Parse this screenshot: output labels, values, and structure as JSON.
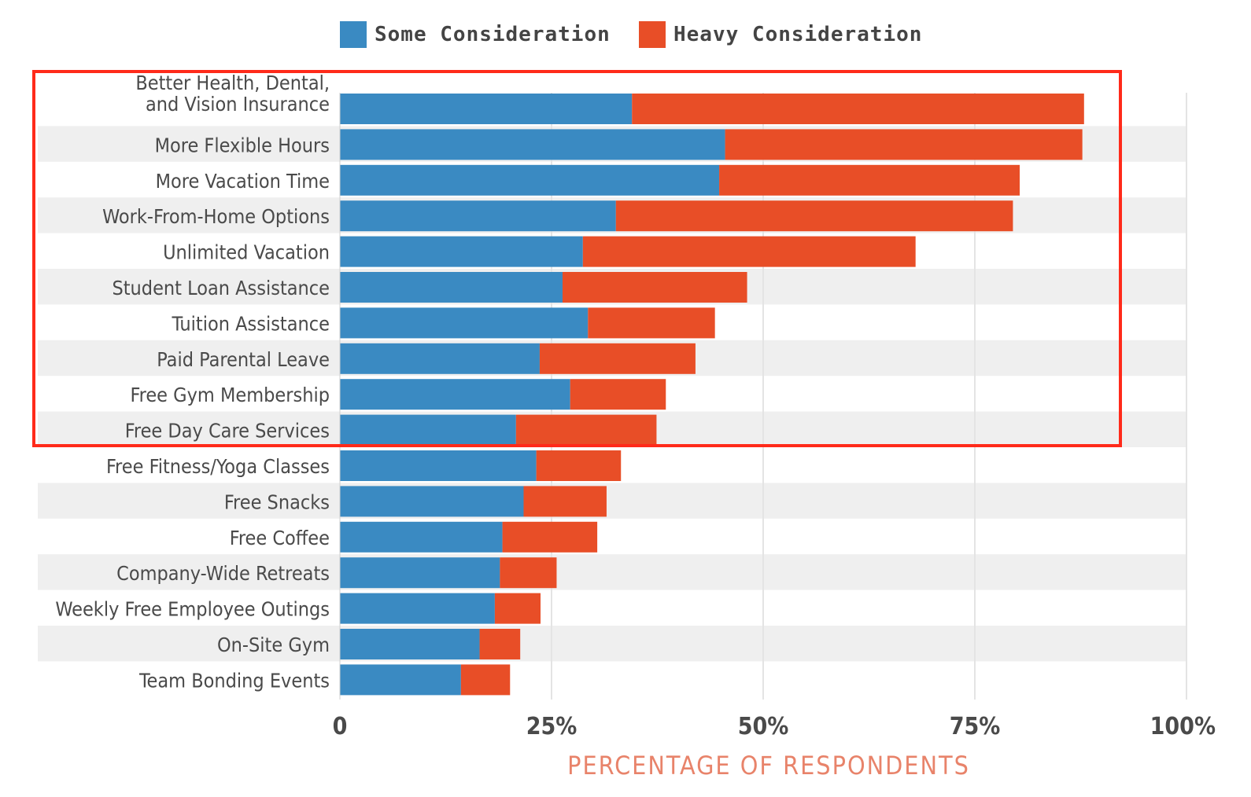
{
  "chart_data": {
    "type": "bar",
    "orientation": "horizontal",
    "stacked": true,
    "categories": [
      "Better Health, Dental,\nand Vision Insurance",
      "More Flexible Hours",
      "More Vacation Time",
      "Work-From-Home Options",
      "Unlimited Vacation",
      "Student Loan Assistance",
      "Tuition Assistance",
      "Paid Parental Leave",
      "Free Gym Membership",
      "Free Day Care Services",
      "Free Fitness/Yoga Classes",
      "Free Snacks",
      "Free Coffee",
      "Company-Wide Retreats",
      "Weekly Free Employee Outings",
      "On-Site Gym",
      "Team Bonding Events"
    ],
    "series": [
      {
        "name": "Some Consideration",
        "color": "#3a8ac2",
        "values": [
          34.5,
          45.5,
          44.8,
          32.6,
          28.7,
          26.3,
          29.3,
          23.6,
          27.2,
          20.8,
          23.2,
          21.7,
          19.2,
          18.9,
          18.3,
          16.5,
          14.3
        ]
      },
      {
        "name": "Heavy Consideration",
        "color": "#e84e27",
        "values": [
          53.4,
          42.2,
          35.5,
          46.9,
          39.3,
          21.8,
          15.0,
          18.4,
          11.3,
          16.6,
          10.0,
          9.8,
          11.2,
          6.7,
          5.4,
          4.8,
          5.8
        ]
      }
    ],
    "xlim": [
      0,
      100
    ],
    "xticks": [
      0,
      25,
      50,
      75,
      100
    ],
    "xtick_labels": [
      "0",
      "25%",
      "50%",
      "75%",
      "100%"
    ],
    "xlabel": "PERCENTAGE OF RESPONDENTS",
    "ylabel": "",
    "title": "",
    "legend_position": "top",
    "grid": true,
    "highlight_rows": [
      0,
      9
    ]
  },
  "colors": {
    "some": "#3a8ac2",
    "heavy": "#e84e27",
    "band": "#efefef",
    "highlight_border": "#ff2a1a",
    "xlabel": "#e8836a"
  }
}
